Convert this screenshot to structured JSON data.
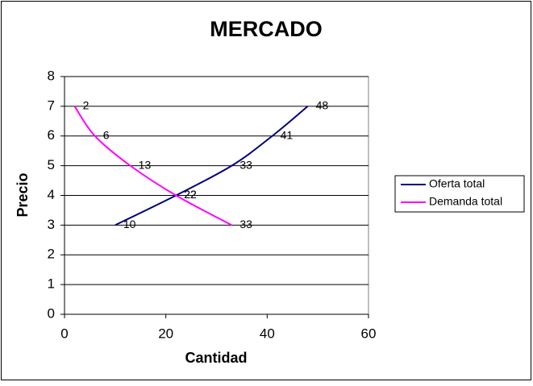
{
  "chart_data": {
    "type": "line",
    "title": "MERCADO",
    "x_label": "Cantidad",
    "y_label": "Precio",
    "series": [
      {
        "name": "Oferta total",
        "color": "#000080",
        "x": [
          10,
          22,
          33,
          41,
          48
        ],
        "values": [
          3,
          4,
          5,
          6,
          7
        ]
      },
      {
        "name": "Demanda total",
        "color": "#ff00ff",
        "x": [
          2,
          6,
          13,
          22,
          33
        ],
        "values": [
          7,
          6,
          5,
          4,
          3
        ]
      }
    ],
    "xlim": [
      0,
      60
    ],
    "xticks": [
      0,
      20,
      40,
      60
    ],
    "ylim": [
      0,
      8
    ],
    "yticks": [
      0,
      1,
      2,
      3,
      4,
      5,
      6,
      7,
      8
    ],
    "grid": true,
    "legend": "right"
  }
}
